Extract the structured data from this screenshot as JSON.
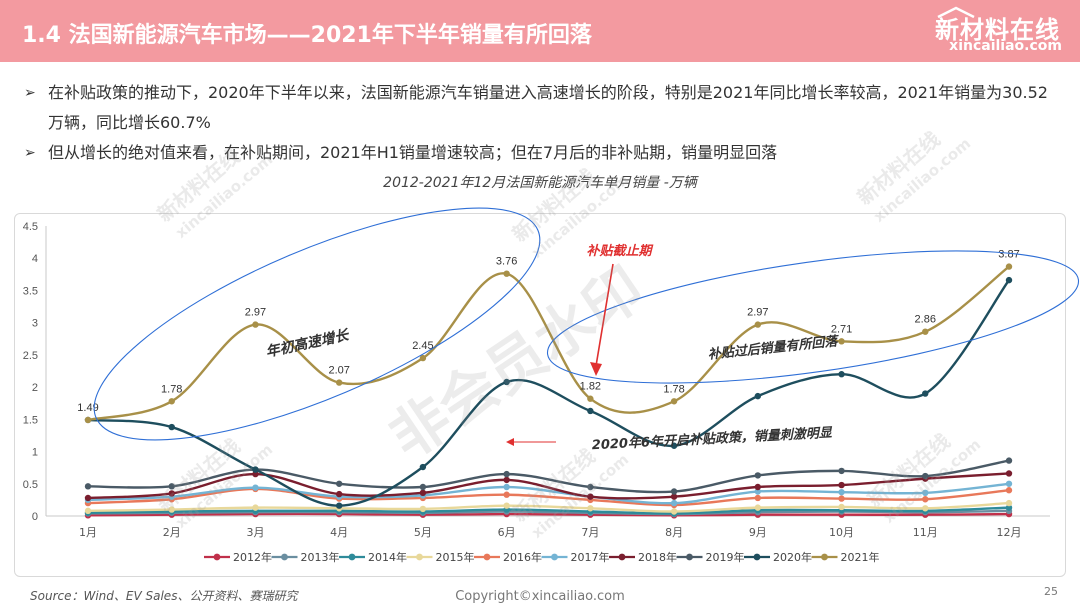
{
  "header": {
    "title": "1.4 法国新能源汽车市场——2021年下半年销量有所回落",
    "logo_cn": "新材料在线",
    "logo_en": "xincailiao.com",
    "bg_color": "#f39aa0"
  },
  "bullets": [
    "在补贴政策的推动下，2020年下半年以来，法国新能源汽车销量进入高速增长的阶段，特别是2021年同比增长率较高，2021年销量为30.52万辆，同比增长60.7%",
    "但从增长的绝对值来看，在补贴期间，2021年H1销量增速较高；但在7月后的非补贴期，销量明显回落"
  ],
  "watermarks": {
    "cn": "新材料在线",
    "en": "xincailiao.com",
    "vip": "非会员水印"
  },
  "chart_data": {
    "type": "line",
    "title": "2012-2021年12月法国新能源汽车单月销量 -万辆",
    "categories": [
      "1月",
      "2月",
      "3月",
      "4月",
      "5月",
      "6月",
      "7月",
      "8月",
      "9月",
      "10月",
      "11月",
      "12月"
    ],
    "ylim": [
      0,
      4.5
    ],
    "yticks": [
      "0",
      "0.5",
      "1",
      "1.5",
      "2",
      "2.5",
      "3",
      "3.5",
      "4",
      "4.5"
    ],
    "grid": false,
    "legend_position": "bottom",
    "series": [
      {
        "name": "2012年",
        "color": "#c0304a",
        "values": [
          0.01,
          0.02,
          0.03,
          0.03,
          0.02,
          0.03,
          0.02,
          0.01,
          0.02,
          0.02,
          0.02,
          0.03
        ]
      },
      {
        "name": "2013年",
        "color": "#6a8ea0",
        "values": [
          0.04,
          0.05,
          0.06,
          0.06,
          0.05,
          0.07,
          0.05,
          0.03,
          0.06,
          0.07,
          0.06,
          0.08
        ]
      },
      {
        "name": "2014年",
        "color": "#2e8b9a",
        "values": [
          0.05,
          0.07,
          0.08,
          0.08,
          0.07,
          0.1,
          0.07,
          0.04,
          0.09,
          0.09,
          0.08,
          0.13
        ]
      },
      {
        "name": "2015年",
        "color": "#e8d89a",
        "values": [
          0.08,
          0.1,
          0.13,
          0.12,
          0.11,
          0.16,
          0.12,
          0.07,
          0.13,
          0.14,
          0.12,
          0.2
        ]
      },
      {
        "name": "2016年",
        "color": "#e8785a",
        "values": [
          0.2,
          0.26,
          0.42,
          0.27,
          0.28,
          0.33,
          0.25,
          0.17,
          0.28,
          0.27,
          0.26,
          0.4
        ]
      },
      {
        "name": "2017年",
        "color": "#74b4d4",
        "values": [
          0.25,
          0.3,
          0.44,
          0.3,
          0.32,
          0.45,
          0.3,
          0.2,
          0.38,
          0.37,
          0.36,
          0.5
        ]
      },
      {
        "name": "2018年",
        "color": "#7a1e2e",
        "values": [
          0.28,
          0.35,
          0.65,
          0.34,
          0.36,
          0.56,
          0.3,
          0.3,
          0.45,
          0.48,
          0.58,
          0.66
        ]
      },
      {
        "name": "2019年",
        "color": "#4a5a66",
        "values": [
          0.46,
          0.46,
          0.72,
          0.5,
          0.45,
          0.65,
          0.45,
          0.38,
          0.63,
          0.7,
          0.62,
          0.86
        ]
      },
      {
        "name": "2020年",
        "color": "#1e4e5e",
        "values": [
          1.49,
          1.38,
          0.72,
          0.16,
          0.76,
          2.08,
          1.63,
          1.09,
          1.86,
          2.2,
          1.9,
          3.66
        ]
      },
      {
        "name": "2021年",
        "color": "#a89048",
        "values": [
          1.49,
          1.78,
          2.97,
          2.07,
          2.45,
          3.76,
          1.82,
          1.78,
          2.97,
          2.71,
          2.86,
          3.87
        ]
      }
    ],
    "data_labels_2021": [
      "1.49",
      "1.78",
      "2.97",
      "2.07",
      "2.45",
      "3.76",
      "1.82",
      "1.78",
      "2.97",
      "2.71",
      "2.86",
      "3.87"
    ],
    "annotations": {
      "growth": "年初高速增长",
      "cutoff": "补贴截止期",
      "after": "补贴过后销量有所回落",
      "policy": "2020年6年开启补贴政策，销量刺激明显"
    },
    "annotation_colors": {
      "ellipse": "#2f6fd6",
      "arrow": "#e03030",
      "cutoff_text": "#e03030",
      "label_text": "#333333"
    }
  },
  "footer": {
    "source": "Source：Wind、EV Sales、公开资料、赛瑞研究",
    "copyright": "Copyright©xincailiao.com",
    "page": "25"
  }
}
